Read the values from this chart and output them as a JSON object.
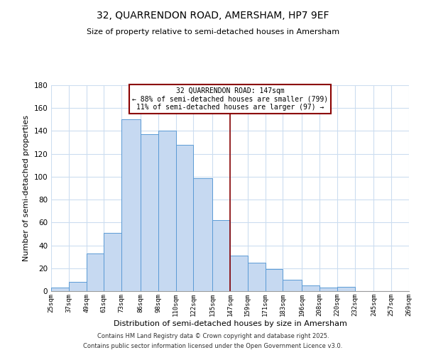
{
  "title": "32, QUARRENDON ROAD, AMERSHAM, HP7 9EF",
  "subtitle": "Size of property relative to semi-detached houses in Amersham",
  "xlabel": "Distribution of semi-detached houses by size in Amersham",
  "ylabel": "Number of semi-detached properties",
  "bar_edges": [
    25,
    37,
    49,
    61,
    73,
    86,
    98,
    110,
    122,
    135,
    147,
    159,
    171,
    183,
    196,
    208,
    220,
    232,
    245,
    257,
    269
  ],
  "bar_heights": [
    3,
    8,
    33,
    51,
    150,
    137,
    140,
    128,
    99,
    62,
    31,
    25,
    19,
    10,
    5,
    3,
    4,
    0,
    0,
    0
  ],
  "bar_color": "#c6d9f1",
  "bar_edge_color": "#5b9bd5",
  "vline_x": 147,
  "vline_color": "#8b0000",
  "annotation_title": "32 QUARRENDON ROAD: 147sqm",
  "annotation_line1": "← 88% of semi-detached houses are smaller (799)",
  "annotation_line2": "11% of semi-detached houses are larger (97) →",
  "annotation_box_color": "#ffffff",
  "annotation_box_edge_color": "#8b0000",
  "ylim": [
    0,
    180
  ],
  "tick_labels": [
    "25sqm",
    "37sqm",
    "49sqm",
    "61sqm",
    "73sqm",
    "86sqm",
    "98sqm",
    "110sqm",
    "122sqm",
    "135sqm",
    "147sqm",
    "159sqm",
    "171sqm",
    "183sqm",
    "196sqm",
    "208sqm",
    "220sqm",
    "232sqm",
    "245sqm",
    "257sqm",
    "269sqm"
  ],
  "footer1": "Contains HM Land Registry data © Crown copyright and database right 2025.",
  "footer2": "Contains public sector information licensed under the Open Government Licence v3.0.",
  "bg_color": "#ffffff",
  "grid_color": "#ccddf0"
}
